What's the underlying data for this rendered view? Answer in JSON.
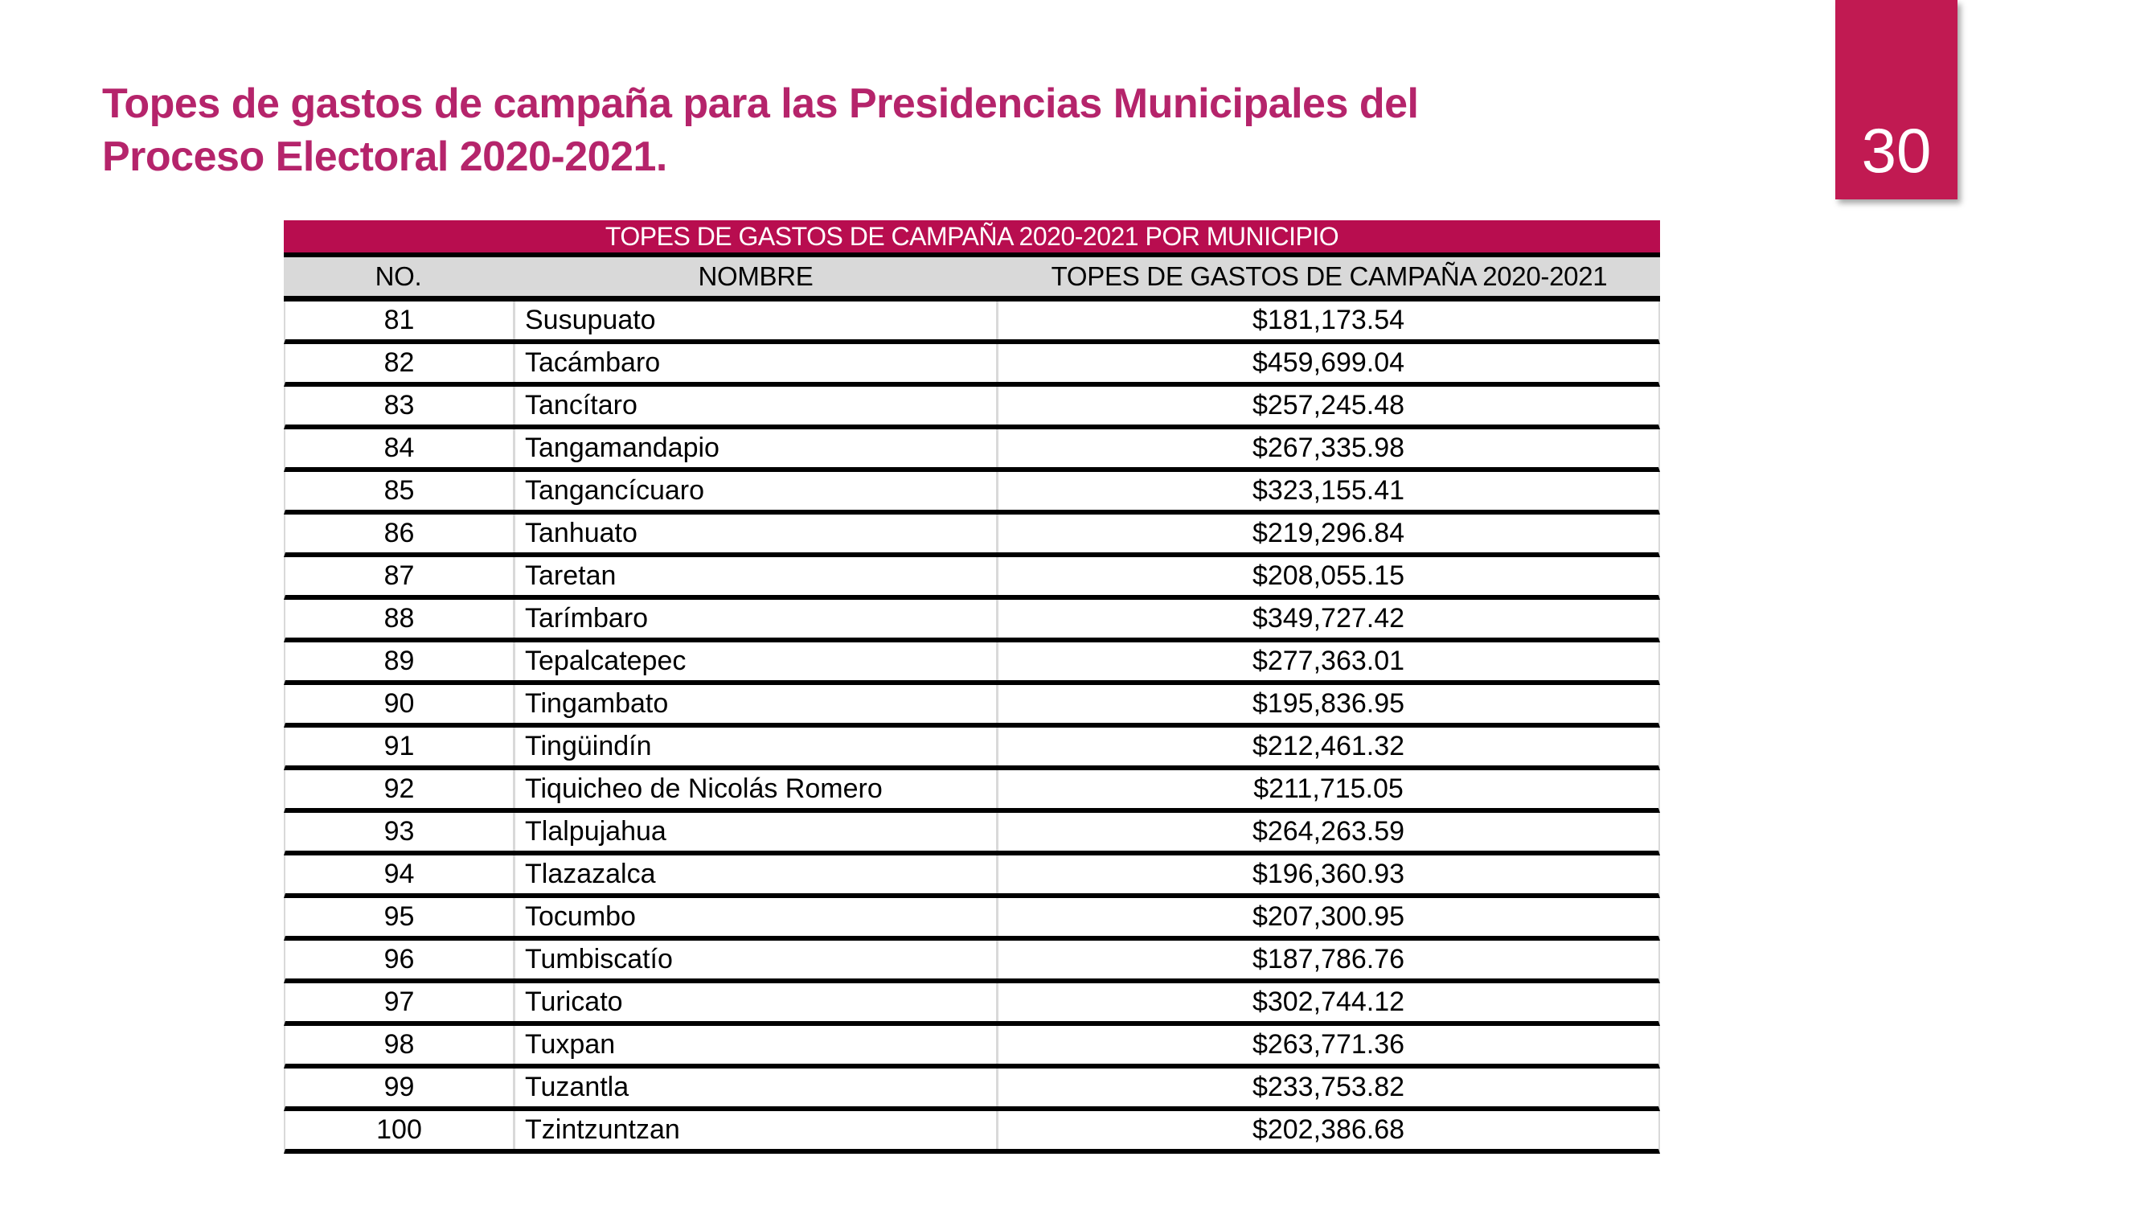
{
  "page": {
    "title_line1": "Topes de gastos de campaña para las Presidencias Municipales del",
    "title_line2": "Proceso Electoral 2020-2021.",
    "page_number": "30"
  },
  "colors": {
    "title_text": "#b5246b",
    "banner_bg": "#b80d4f",
    "badge_bg": "#c11a52",
    "header_bg": "#d9d9d9",
    "column_divider": "#d9d9d9",
    "row_rule": "#000000"
  },
  "table": {
    "banner_title": "TOPES DE GASTOS DE CAMPAÑA 2020-2021 POR MUNICIPIO",
    "columns": [
      "NO.",
      "NOMBRE",
      "TOPES DE GASTOS DE CAMPAÑA 2020-2021"
    ],
    "rows": [
      {
        "no": "81",
        "nombre": "Susupuato",
        "tope": "$181,173.54"
      },
      {
        "no": "82",
        "nombre": "Tacámbaro",
        "tope": "$459,699.04"
      },
      {
        "no": "83",
        "nombre": "Tancítaro",
        "tope": "$257,245.48"
      },
      {
        "no": "84",
        "nombre": "Tangamandapio",
        "tope": "$267,335.98"
      },
      {
        "no": "85",
        "nombre": "Tangancícuaro",
        "tope": "$323,155.41"
      },
      {
        "no": "86",
        "nombre": "Tanhuato",
        "tope": "$219,296.84"
      },
      {
        "no": "87",
        "nombre": "Taretan",
        "tope": "$208,055.15"
      },
      {
        "no": "88",
        "nombre": "Tarímbaro",
        "tope": "$349,727.42"
      },
      {
        "no": "89",
        "nombre": "Tepalcatepec",
        "tope": "$277,363.01"
      },
      {
        "no": "90",
        "nombre": "Tingambato",
        "tope": "$195,836.95"
      },
      {
        "no": "91",
        "nombre": "Tingüindín",
        "tope": "$212,461.32"
      },
      {
        "no": "92",
        "nombre": "Tiquicheo de Nicolás Romero",
        "tope": "$211,715.05"
      },
      {
        "no": "93",
        "nombre": "Tlalpujahua",
        "tope": "$264,263.59"
      },
      {
        "no": "94",
        "nombre": "Tlazazalca",
        "tope": "$196,360.93"
      },
      {
        "no": "95",
        "nombre": "Tocumbo",
        "tope": "$207,300.95"
      },
      {
        "no": "96",
        "nombre": "Tumbiscatío",
        "tope": "$187,786.76"
      },
      {
        "no": "97",
        "nombre": "Turicato",
        "tope": "$302,744.12"
      },
      {
        "no": "98",
        "nombre": "Tuxpan",
        "tope": "$263,771.36"
      },
      {
        "no": "99",
        "nombre": "Tuzantla",
        "tope": "$233,753.82"
      },
      {
        "no": "100",
        "nombre": "Tzintzuntzan",
        "tope": "$202,386.68"
      }
    ]
  }
}
